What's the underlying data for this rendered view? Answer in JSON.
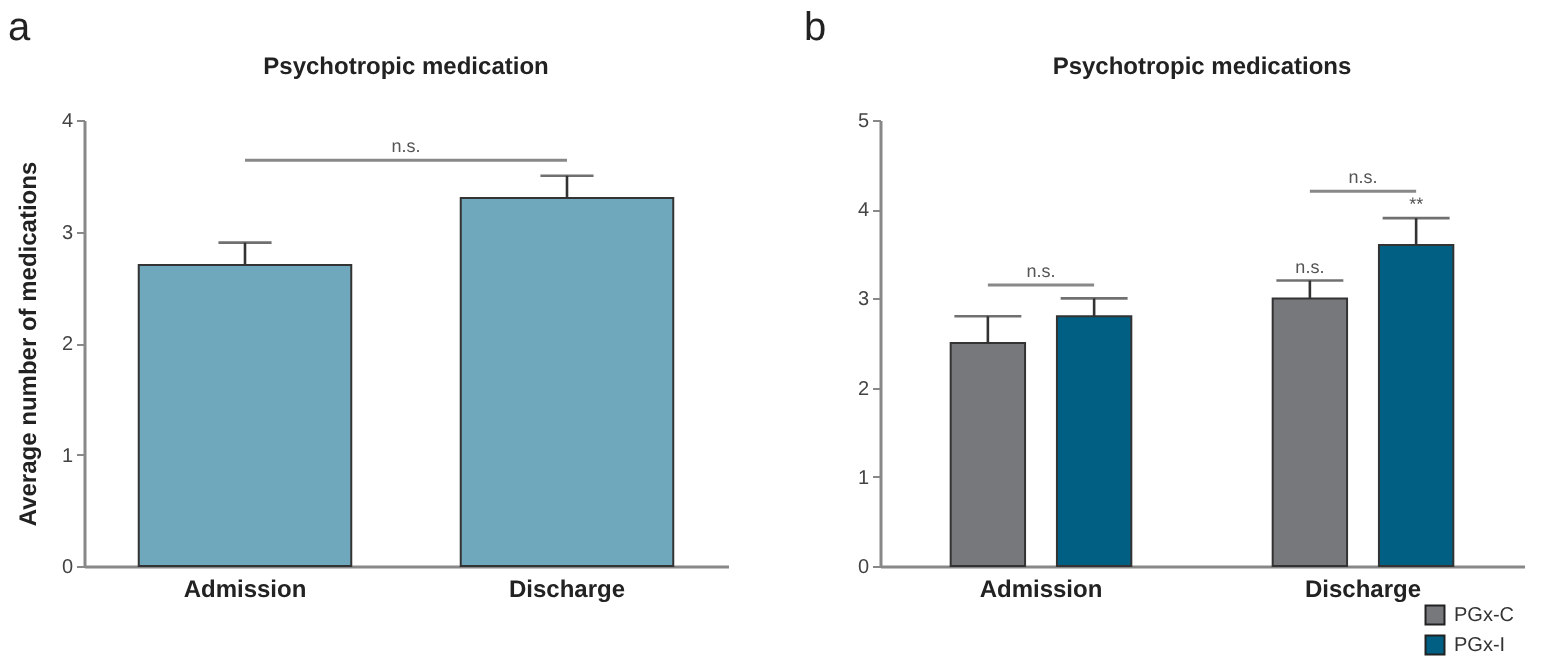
{
  "chart_data": [
    {
      "type": "bar",
      "title": "Psychotropic medication",
      "ylabel": "Average number of medications",
      "categories": [
        "Admission",
        "Discharge"
      ],
      "values": [
        2.7,
        3.3
      ],
      "color": "#6fa8bd",
      "errors": [
        [
          2.7,
          2.9
        ],
        [
          3.3,
          3.5
        ]
      ],
      "ylim": [
        0,
        4
      ],
      "yticks": [
        0,
        1,
        2,
        3,
        4
      ],
      "annotations": [
        "a",
        "n.s."
      ]
    },
    {
      "type": "bar",
      "title": "Psychotropic medications",
      "categories": [
        "Admission",
        "Discharge"
      ],
      "legend": "bottom right",
      "ylim": [
        0,
        5
      ],
      "yticks": [
        0,
        1,
        2,
        3,
        4,
        5
      ],
      "series": [
        {
          "name": "PGx-C",
          "color": "#77787c",
          "values": [
            2.5,
            3.0
          ],
          "errors": [
            [
              2.5,
              2.8
            ],
            [
              3.0,
              3.2
            ]
          ]
        },
        {
          "name": "PGx-I",
          "color": "#005f82",
          "values": [
            2.8,
            3.6
          ],
          "errors": [
            [
              2.8,
              3.0
            ],
            [
              3.6,
              3.9
            ]
          ]
        }
      ],
      "annotations": [
        "b",
        "n.s.",
        "n.s.",
        "n.s.",
        "**"
      ]
    }
  ]
}
